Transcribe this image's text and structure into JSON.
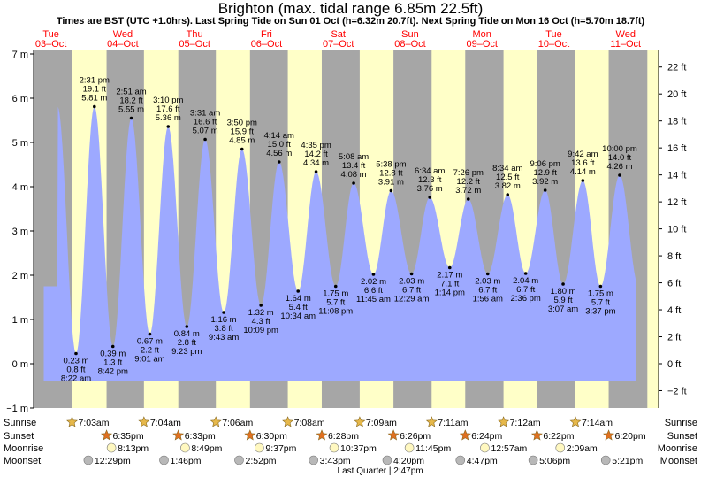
{
  "title": "Brighton (max. tidal range 6.85m 22.5ft)",
  "subtitle": "Times are BST (UTC +1.0hrs). Last Spring Tide on Sun 01 Oct (h=6.32m 20.7ft). Next Spring Tide on Mon 16 Oct (h=5.70m 18.7ft)",
  "colors": {
    "water": "#9da9ff",
    "night": "#a6a6a6",
    "day": "#ffffc8",
    "sun": "#e6b84a",
    "sunset": "#e07020",
    "moonrise": "#fff8c0",
    "moonset": "#b8b8b8",
    "day_label": "#ff0000"
  },
  "chart_data": {
    "type": "area",
    "ylabel_left": "m",
    "ylabel_right": "ft",
    "ylim_m": [
      -1,
      7
    ],
    "yticks_m": [
      "7 m",
      "6 m",
      "5 m",
      "4 m",
      "3 m",
      "2 m",
      "1 m",
      "0 m",
      "−1 m"
    ],
    "yticks_ft": [
      "22 ft",
      "20 ft",
      "18 ft",
      "16 ft",
      "14 ft",
      "12 ft",
      "10 ft",
      "8 ft",
      "6 ft",
      "4 ft",
      "2 ft",
      "0 ft",
      "−2 ft"
    ],
    "days": [
      {
        "dow": "Tue",
        "date": "03–Oct",
        "hour": 0
      },
      {
        "dow": "Wed",
        "date": "04–Oct",
        "hour": 24
      },
      {
        "dow": "Thu",
        "date": "05–Oct",
        "hour": 48
      },
      {
        "dow": "Fri",
        "date": "06–Oct",
        "hour": 72
      },
      {
        "dow": "Sat",
        "date": "07–Oct",
        "hour": 96
      },
      {
        "dow": "Sun",
        "date": "08–Oct",
        "hour": 120
      },
      {
        "dow": "Mon",
        "date": "09–Oct",
        "hour": 144
      },
      {
        "dow": "Tue",
        "date": "10–Oct",
        "hour": 168
      },
      {
        "dow": "Wed",
        "date": "11–Oct",
        "hour": 192
      }
    ],
    "tides": [
      {
        "hour": 8.37,
        "m": 0.23,
        "label_m": "0.23 m",
        "label_ft": "0.8 ft",
        "time": "8:22 am",
        "type": "low"
      },
      {
        "hour": 14.52,
        "m": 5.81,
        "label_m": "5.81 m",
        "label_ft": "19.1 ft",
        "time": "2:31 pm",
        "type": "high"
      },
      {
        "hour": 20.7,
        "m": 0.39,
        "label_m": "0.39 m",
        "label_ft": "1.3 ft",
        "time": "8:42 pm",
        "type": "low"
      },
      {
        "hour": 26.85,
        "m": 5.55,
        "label_m": "5.55 m",
        "label_ft": "18.2 ft",
        "time": "2:51 am",
        "type": "high"
      },
      {
        "hour": 33.02,
        "m": 0.67,
        "label_m": "0.67 m",
        "label_ft": "2.2 ft",
        "time": "9:01 am",
        "type": "low"
      },
      {
        "hour": 39.17,
        "m": 5.36,
        "label_m": "5.36 m",
        "label_ft": "17.6 ft",
        "time": "3:10 pm",
        "type": "high"
      },
      {
        "hour": 45.38,
        "m": 0.84,
        "label_m": "0.84 m",
        "label_ft": "2.8 ft",
        "time": "9:23 pm",
        "type": "low"
      },
      {
        "hour": 51.52,
        "m": 5.07,
        "label_m": "5.07 m",
        "label_ft": "16.6 ft",
        "time": "3:31 am",
        "type": "high"
      },
      {
        "hour": 57.72,
        "m": 1.16,
        "label_m": "1.16 m",
        "label_ft": "3.8 ft",
        "time": "9:43 am",
        "type": "low"
      },
      {
        "hour": 63.83,
        "m": 4.85,
        "label_m": "4.85 m",
        "label_ft": "15.9 ft",
        "time": "3:50 pm",
        "type": "high"
      },
      {
        "hour": 70.15,
        "m": 1.32,
        "label_m": "1.32 m",
        "label_ft": "4.3 ft",
        "time": "10:09 pm",
        "type": "low"
      },
      {
        "hour": 76.23,
        "m": 4.56,
        "label_m": "4.56 m",
        "label_ft": "15.0 ft",
        "time": "4:14 am",
        "type": "high"
      },
      {
        "hour": 82.57,
        "m": 1.64,
        "label_m": "1.64 m",
        "label_ft": "5.4 ft",
        "time": "10:34 am",
        "type": "low"
      },
      {
        "hour": 88.58,
        "m": 4.34,
        "label_m": "4.34 m",
        "label_ft": "14.2 ft",
        "time": "4:35 pm",
        "type": "high"
      },
      {
        "hour": 95.13,
        "m": 1.75,
        "label_m": "1.75 m",
        "label_ft": "5.7 ft",
        "time": "11:08 pm",
        "type": "low"
      },
      {
        "hour": 101.13,
        "m": 4.08,
        "label_m": "4.08 m",
        "label_ft": "13.4 ft",
        "time": "5:08 am",
        "type": "high"
      },
      {
        "hour": 107.75,
        "m": 2.02,
        "label_m": "2.02 m",
        "label_ft": "6.6 ft",
        "time": "11:45 am",
        "type": "low"
      },
      {
        "hour": 113.63,
        "m": 3.91,
        "label_m": "3.91 m",
        "label_ft": "12.8 ft",
        "time": "5:38 pm",
        "type": "high"
      },
      {
        "hour": 120.48,
        "m": 2.03,
        "label_m": "2.03 m",
        "label_ft": "6.7 ft",
        "time": "12:29 am",
        "type": "low"
      },
      {
        "hour": 126.57,
        "m": 3.76,
        "label_m": "3.76 m",
        "label_ft": "12.3 ft",
        "time": "6:34 am",
        "type": "high"
      },
      {
        "hour": 133.23,
        "m": 2.17,
        "label_m": "2.17 m",
        "label_ft": "7.1 ft",
        "time": "1:14 pm",
        "type": "low"
      },
      {
        "hour": 139.43,
        "m": 3.72,
        "label_m": "3.72 m",
        "label_ft": "12.2 ft",
        "time": "7:26 pm",
        "type": "high"
      },
      {
        "hour": 145.93,
        "m": 2.03,
        "label_m": "2.03 m",
        "label_ft": "6.7 ft",
        "time": "1:56 am",
        "type": "low"
      },
      {
        "hour": 152.57,
        "m": 3.82,
        "label_m": "3.82 m",
        "label_ft": "12.5 ft",
        "time": "8:34 am",
        "type": "high"
      },
      {
        "hour": 158.6,
        "m": 2.04,
        "label_m": "2.04 m",
        "label_ft": "6.7 ft",
        "time": "2:36 pm",
        "type": "low"
      },
      {
        "hour": 165.1,
        "m": 3.92,
        "label_m": "3.92 m",
        "label_ft": "12.9 ft",
        "time": "9:06 pm",
        "type": "high"
      },
      {
        "hour": 171.12,
        "m": 1.8,
        "label_m": "1.80 m",
        "label_ft": "5.9 ft",
        "time": "3:07 am",
        "type": "low"
      },
      {
        "hour": 177.7,
        "m": 4.14,
        "label_m": "4.14 m",
        "label_ft": "13.6 ft",
        "time": "9:42 am",
        "type": "high"
      },
      {
        "hour": 183.62,
        "m": 1.75,
        "label_m": "1.75 m",
        "label_ft": "5.7 ft",
        "time": "3:37 pm",
        "type": "low"
      },
      {
        "hour": 190.0,
        "m": 4.26,
        "label_m": "4.26 m",
        "label_ft": "14.0 ft",
        "time": "10:00 pm",
        "type": "high"
      }
    ],
    "sunrise": [
      {
        "hour": 7.05,
        "time": "7:03am"
      },
      {
        "hour": 31.07,
        "time": "7:04am"
      },
      {
        "hour": 55.1,
        "time": "7:06am"
      },
      {
        "hour": 79.13,
        "time": "7:08am"
      },
      {
        "hour": 103.15,
        "time": "7:09am"
      },
      {
        "hour": 127.18,
        "time": "7:11am"
      },
      {
        "hour": 151.2,
        "time": "7:12am"
      },
      {
        "hour": 175.23,
        "time": "7:14am"
      }
    ],
    "sunset": [
      {
        "hour": 18.58,
        "time": "6:35pm"
      },
      {
        "hour": 42.55,
        "time": "6:33pm"
      },
      {
        "hour": 66.5,
        "time": "6:30pm"
      },
      {
        "hour": 90.47,
        "time": "6:28pm"
      },
      {
        "hour": 114.43,
        "time": "6:26pm"
      },
      {
        "hour": 138.4,
        "time": "6:24pm"
      },
      {
        "hour": 162.37,
        "time": "6:22pm"
      },
      {
        "hour": 186.33,
        "time": "6:20pm"
      }
    ],
    "moonrise": [
      {
        "hour": 20.22,
        "time": "8:13pm"
      },
      {
        "hour": 44.82,
        "time": "8:49pm"
      },
      {
        "hour": 69.62,
        "time": "9:37pm"
      },
      {
        "hour": 94.62,
        "time": "10:37pm"
      },
      {
        "hour": 119.75,
        "time": "11:45pm"
      },
      {
        "hour": 144.95,
        "time": "12:57am"
      },
      {
        "hour": 170.15,
        "time": "2:09am"
      }
    ],
    "moonset": [
      {
        "hour": 12.48,
        "time": "12:29pm"
      },
      {
        "hour": 37.77,
        "time": "1:46pm"
      },
      {
        "hour": 62.87,
        "time": "2:52pm"
      },
      {
        "hour": 87.72,
        "time": "3:43pm"
      },
      {
        "hour": 112.33,
        "time": "4:20pm"
      },
      {
        "hour": 136.78,
        "time": "4:47pm"
      },
      {
        "hour": 161.1,
        "time": "5:06pm"
      },
      {
        "hour": 185.35,
        "time": "5:21pm"
      }
    ],
    "moon_phase": {
      "hour": 110.0,
      "text": "Last Quarter | 2:47pm"
    },
    "row_labels": [
      "Sunrise",
      "Sunset",
      "Moonrise",
      "Moonset"
    ]
  }
}
